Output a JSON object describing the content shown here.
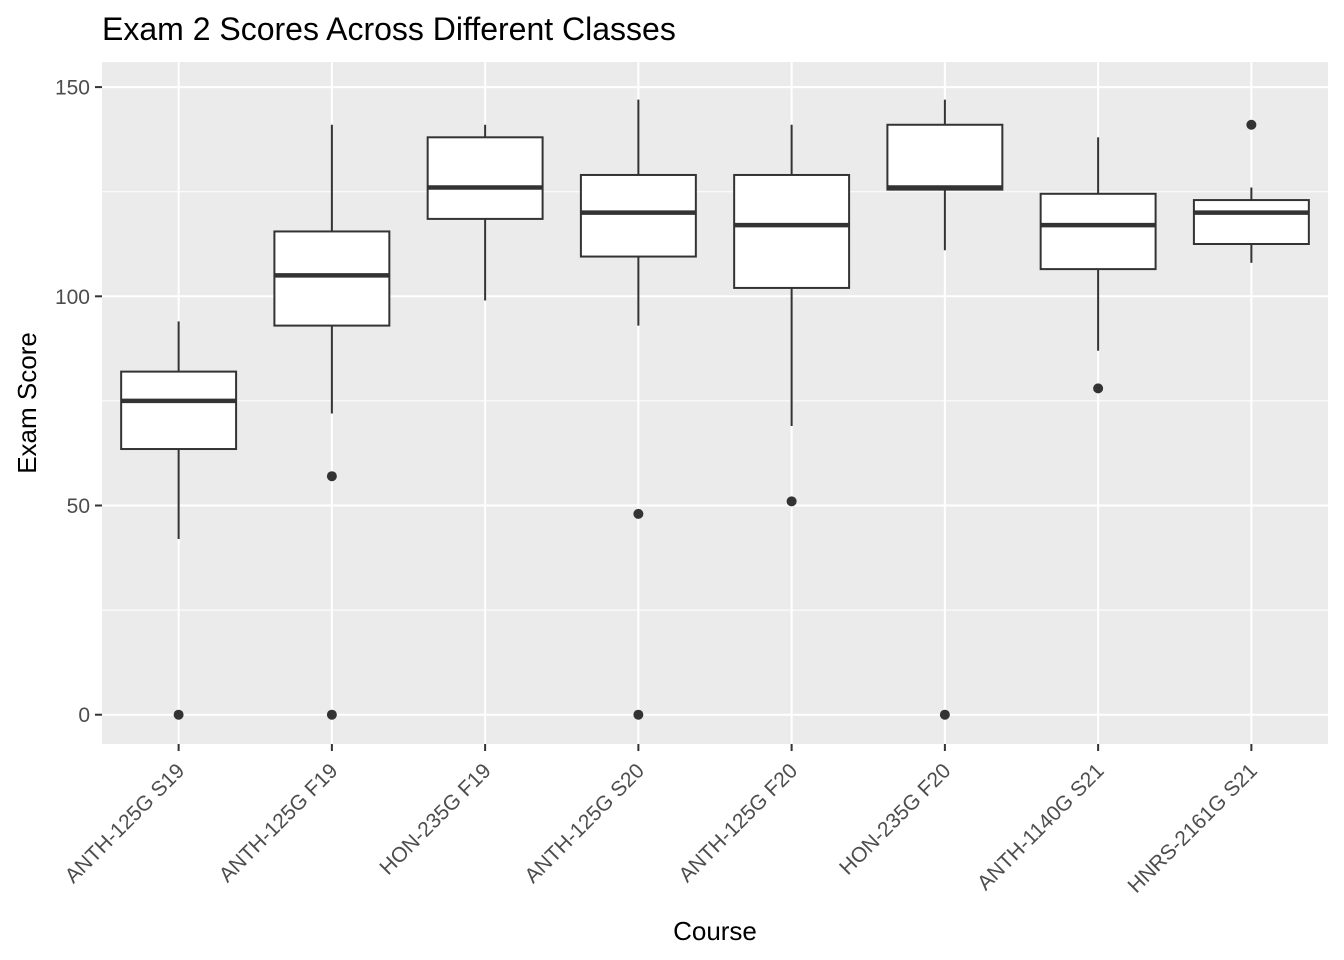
{
  "chart_data": {
    "type": "boxplot",
    "title": "Exam 2 Scores Across Different Classes",
    "xlabel": "Course",
    "ylabel": "Exam Score",
    "ylim": [
      -7,
      156
    ],
    "yticks": [
      0,
      50,
      100,
      150
    ],
    "grid": true,
    "legend": "none",
    "categories": [
      "ANTH-125G S19",
      "ANTH-125G F19",
      "HON-235G F19",
      "ANTH-125G S20",
      "ANTH-125G F20",
      "HON-235G F20",
      "ANTH-1140G S21",
      "HNRS-2161G S21"
    ],
    "boxes": [
      {
        "lower_whisker": 42,
        "q1": 63.5,
        "median": 75,
        "q3": 82,
        "upper_whisker": 94,
        "outliers": [
          0
        ]
      },
      {
        "lower_whisker": 72,
        "q1": 93,
        "median": 105,
        "q3": 115.5,
        "upper_whisker": 141,
        "outliers": [
          57,
          0
        ]
      },
      {
        "lower_whisker": 99,
        "q1": 118.5,
        "median": 126,
        "q3": 138,
        "upper_whisker": 141,
        "outliers": []
      },
      {
        "lower_whisker": 93,
        "q1": 109.5,
        "median": 120,
        "q3": 129,
        "upper_whisker": 147,
        "outliers": [
          48,
          0
        ]
      },
      {
        "lower_whisker": 69,
        "q1": 102,
        "median": 117,
        "q3": 129,
        "upper_whisker": 141,
        "outliers": [
          51
        ]
      },
      {
        "lower_whisker": 111,
        "q1": 125.5,
        "median": 126,
        "q3": 141,
        "upper_whisker": 147,
        "outliers": [
          0
        ]
      },
      {
        "lower_whisker": 87,
        "q1": 106.5,
        "median": 117,
        "q3": 124.5,
        "upper_whisker": 138,
        "outliers": [
          78
        ]
      },
      {
        "lower_whisker": 108,
        "q1": 112.5,
        "median": 120,
        "q3": 123,
        "upper_whisker": 126,
        "outliers": [
          141
        ]
      }
    ],
    "colors": {
      "panel": "#ebebeb",
      "grid": "#ffffff",
      "box_fill": "#ffffff",
      "box_line": "#333333",
      "tick_text": "#4d4d4d",
      "tick_mark": "#333333"
    }
  }
}
